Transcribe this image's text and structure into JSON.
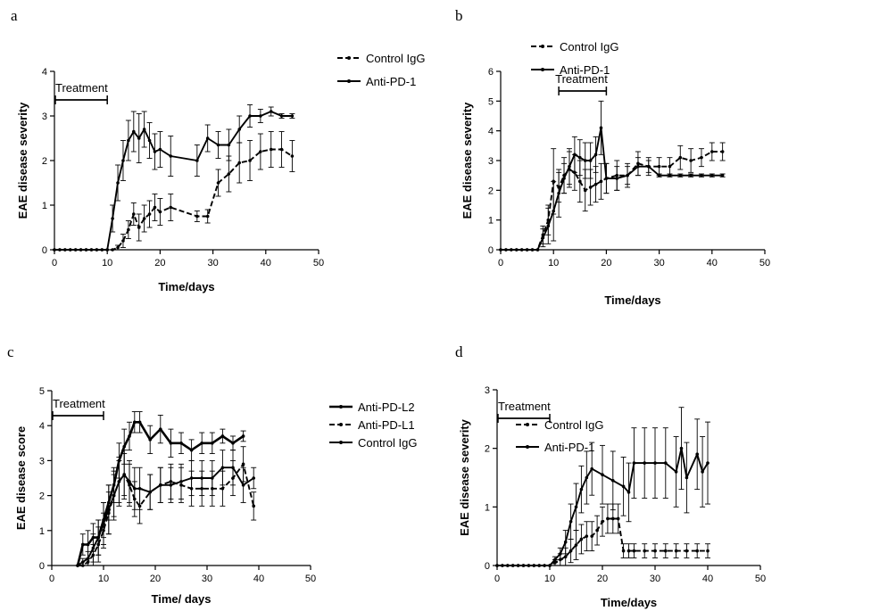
{
  "panels": [
    {
      "label": "a"
    },
    {
      "label": "b"
    },
    {
      "label": "c"
    },
    {
      "label": "d"
    }
  ],
  "chart_data": [
    {
      "type": "line",
      "xlabel": "Time/days",
      "ylabel": "EAE  disease severity",
      "xlim": [
        0,
        50
      ],
      "ylim": [
        0,
        4
      ],
      "xticks": [
        0,
        10,
        20,
        30,
        40,
        50
      ],
      "yticks": [
        0,
        1,
        2,
        3,
        4
      ],
      "treatment": {
        "label": "Treatment",
        "start": 0,
        "end": 10
      },
      "legend": [
        "Control IgG",
        "Anti-PD-1"
      ],
      "series": [
        {
          "name": "Control IgG",
          "style": "dashed",
          "x": [
            0,
            1,
            2,
            3,
            4,
            5,
            6,
            7,
            8,
            9,
            10,
            11,
            12,
            13,
            14,
            15,
            16,
            17,
            18,
            19,
            20,
            22,
            27,
            29,
            31,
            33,
            35,
            37,
            39,
            41,
            43,
            45
          ],
          "y": [
            0,
            0,
            0,
            0,
            0,
            0,
            0,
            0,
            0,
            0,
            0,
            0,
            0.05,
            0.2,
            0.45,
            0.8,
            0.5,
            0.7,
            0.8,
            0.95,
            0.85,
            0.95,
            0.75,
            0.75,
            1.5,
            1.7,
            1.95,
            2.0,
            2.2,
            2.25,
            2.25,
            2.1
          ],
          "err": [
            0,
            0,
            0,
            0,
            0,
            0,
            0,
            0,
            0,
            0,
            0,
            0,
            0.05,
            0.15,
            0.2,
            0.25,
            0.3,
            0.3,
            0.3,
            0.3,
            0.3,
            0.3,
            0.12,
            0.15,
            0.3,
            0.4,
            0.45,
            0.45,
            0.4,
            0.4,
            0.4,
            0.35
          ]
        },
        {
          "name": "Anti-PD-1",
          "style": "solid",
          "x": [
            0,
            1,
            2,
            3,
            4,
            5,
            6,
            7,
            8,
            9,
            10,
            11,
            12,
            13,
            14,
            15,
            16,
            17,
            18,
            19,
            20,
            22,
            27,
            29,
            31,
            33,
            35,
            37,
            39,
            41,
            43,
            45
          ],
          "y": [
            0,
            0,
            0,
            0,
            0,
            0,
            0,
            0,
            0,
            0,
            0,
            0.7,
            1.5,
            2.0,
            2.45,
            2.65,
            2.5,
            2.7,
            2.45,
            2.2,
            2.25,
            2.1,
            2.0,
            2.5,
            2.35,
            2.35,
            2.7,
            3.0,
            3.0,
            3.1,
            3.0,
            3.0
          ],
          "err": [
            0,
            0,
            0,
            0,
            0,
            0,
            0,
            0,
            0,
            0,
            0,
            0.3,
            0.4,
            0.45,
            0.45,
            0.45,
            0.55,
            0.4,
            0.4,
            0.4,
            0.4,
            0.45,
            0.35,
            0.3,
            0.3,
            0.35,
            0.3,
            0.25,
            0.15,
            0.1,
            0.05,
            0.05
          ]
        }
      ]
    },
    {
      "type": "line",
      "xlabel": "Time/days",
      "ylabel": "EAE disease severity",
      "xlim": [
        0,
        50
      ],
      "ylim": [
        0,
        6
      ],
      "xticks": [
        0,
        10,
        20,
        30,
        40,
        50
      ],
      "yticks": [
        0,
        1,
        2,
        3,
        4,
        5,
        6
      ],
      "treatment": {
        "label": "Treatment",
        "start": 11,
        "end": 20
      },
      "legend": [
        "Control IgG",
        "Anti-PD-1"
      ],
      "series": [
        {
          "name": "Control IgG",
          "style": "dashed",
          "x": [
            0,
            1,
            2,
            3,
            4,
            5,
            6,
            7,
            8,
            9,
            10,
            11,
            12,
            13,
            14,
            15,
            16,
            17,
            18,
            19,
            20,
            22,
            24,
            26,
            28,
            30,
            32,
            34,
            36,
            38,
            40,
            42
          ],
          "y": [
            0,
            0,
            0,
            0,
            0,
            0,
            0,
            0,
            0.5,
            1.0,
            2.3,
            2.1,
            2.5,
            2.7,
            2.6,
            2.3,
            2.0,
            2.1,
            2.2,
            2.3,
            2.4,
            2.5,
            2.5,
            2.9,
            2.8,
            2.8,
            2.8,
            3.1,
            3.0,
            3.1,
            3.3,
            3.3
          ],
          "err": [
            0,
            0,
            0,
            0,
            0,
            0,
            0,
            0,
            0.3,
            0.5,
            1.1,
            0.5,
            0.6,
            0.6,
            0.6,
            0.7,
            0.7,
            0.6,
            0.6,
            0.6,
            0.5,
            0.5,
            0.4,
            0.4,
            0.3,
            0.3,
            0.3,
            0.4,
            0.4,
            0.3,
            0.3,
            0.3
          ]
        },
        {
          "name": "Anti-PD-1",
          "style": "solid",
          "x": [
            0,
            1,
            2,
            3,
            4,
            5,
            6,
            7,
            8,
            9,
            10,
            11,
            12,
            13,
            14,
            15,
            16,
            17,
            18,
            19,
            20,
            22,
            24,
            26,
            28,
            30,
            32,
            34,
            36,
            38,
            40,
            42
          ],
          "y": [
            0,
            0,
            0,
            0,
            0,
            0,
            0,
            0,
            0.4,
            0.8,
            1.3,
            1.9,
            2.4,
            2.8,
            3.2,
            3.1,
            3.0,
            3.0,
            3.2,
            4.1,
            2.4,
            2.4,
            2.5,
            2.8,
            2.8,
            2.5,
            2.5,
            2.5,
            2.5,
            2.5,
            2.5,
            2.5
          ],
          "err": [
            0,
            0,
            0,
            0,
            0,
            0,
            0,
            0,
            0.3,
            0.6,
            1.0,
            0.8,
            0.5,
            0.6,
            0.6,
            0.6,
            0.6,
            0.6,
            0.6,
            0.9,
            0.5,
            0.4,
            0.3,
            0.3,
            0.2,
            0.05,
            0.05,
            0.05,
            0.05,
            0.05,
            0.05,
            0.05
          ]
        }
      ]
    },
    {
      "type": "line",
      "xlabel": "Time/ days",
      "ylabel": "EAE disease score",
      "xlim": [
        0,
        50
      ],
      "ylim": [
        0,
        5
      ],
      "xticks": [
        0,
        10,
        20,
        30,
        40,
        50
      ],
      "yticks": [
        0,
        1,
        2,
        3,
        4,
        5
      ],
      "treatment": {
        "label": "Treatment",
        "start": 0,
        "end": 10
      },
      "legend": [
        "Anti-PD-L2",
        "Anti-PD-L1",
        "Control IgG"
      ],
      "series": [
        {
          "name": "Anti-PD-L2",
          "style": "solid-bold",
          "x": [
            5,
            6,
            7,
            8,
            9,
            10,
            11,
            12,
            13,
            14,
            15,
            16,
            17,
            19,
            21,
            23,
            25,
            27,
            29,
            31,
            33,
            35,
            37
          ],
          "y": [
            0,
            0.6,
            0.6,
            0.8,
            0.8,
            1.3,
            1.8,
            2.3,
            3.0,
            3.4,
            3.7,
            4.1,
            4.1,
            3.6,
            3.9,
            3.5,
            3.5,
            3.3,
            3.5,
            3.5,
            3.7,
            3.5,
            3.7
          ],
          "err": [
            0,
            0.3,
            0.4,
            0.4,
            0.5,
            0.5,
            0.5,
            0.5,
            0.5,
            0.5,
            0.4,
            0.3,
            0.3,
            0.4,
            0.4,
            0.4,
            0.3,
            0.3,
            0.3,
            0.3,
            0.2,
            0.2,
            0.15
          ]
        },
        {
          "name": "Anti-PD-L1",
          "style": "dashed",
          "x": [
            5,
            6,
            7,
            8,
            9,
            10,
            11,
            12,
            13,
            14,
            15,
            16,
            17,
            19,
            21,
            23,
            25,
            27,
            29,
            31,
            33,
            35,
            37,
            39
          ],
          "y": [
            0,
            0,
            0.1,
            0.3,
            0.6,
            1.0,
            1.5,
            2.0,
            2.4,
            2.6,
            2.3,
            1.9,
            1.7,
            2.1,
            2.3,
            2.4,
            2.3,
            2.2,
            2.2,
            2.2,
            2.2,
            2.5,
            2.9,
            1.7
          ],
          "err": [
            0,
            0,
            0.1,
            0.3,
            0.5,
            0.5,
            0.6,
            0.6,
            0.6,
            0.6,
            0.6,
            0.5,
            0.5,
            0.5,
            0.5,
            0.5,
            0.5,
            0.5,
            0.5,
            0.5,
            0.5,
            0.5,
            0.5,
            0.4
          ]
        },
        {
          "name": "Control IgG",
          "style": "solid",
          "x": [
            5,
            6,
            7,
            8,
            9,
            10,
            11,
            12,
            13,
            14,
            15,
            16,
            17,
            19,
            21,
            23,
            25,
            27,
            29,
            31,
            33,
            35,
            37,
            39
          ],
          "y": [
            0,
            0.1,
            0.2,
            0.5,
            0.8,
            1.2,
            1.6,
            2.0,
            2.4,
            2.6,
            2.4,
            2.2,
            2.2,
            2.1,
            2.3,
            2.3,
            2.4,
            2.5,
            2.5,
            2.5,
            2.8,
            2.8,
            2.3,
            2.5
          ],
          "err": [
            0,
            0.1,
            0.2,
            0.4,
            0.5,
            0.6,
            0.7,
            0.7,
            0.7,
            0.7,
            0.6,
            0.6,
            0.6,
            0.5,
            0.5,
            0.5,
            0.5,
            0.5,
            0.5,
            0.5,
            0.5,
            0.5,
            0.5,
            0.3
          ]
        }
      ]
    },
    {
      "type": "line",
      "xlabel": "Time/days",
      "ylabel": "EAE disease severity",
      "xlim": [
        0,
        50
      ],
      "ylim": [
        0,
        3
      ],
      "xticks": [
        0,
        10,
        20,
        30,
        40,
        50
      ],
      "yticks": [
        0,
        1,
        2,
        3
      ],
      "treatment": {
        "label": "Treatment",
        "start": 0,
        "end": 10
      },
      "legend": [
        "Control IgG",
        "Anti-PD-1"
      ],
      "series": [
        {
          "name": "Control IgG",
          "style": "dashed",
          "x": [
            0,
            1,
            2,
            3,
            4,
            5,
            6,
            7,
            8,
            9,
            10,
            11,
            12,
            13,
            14,
            15,
            16,
            17,
            18,
            19,
            20,
            21,
            22,
            23,
            24,
            25,
            26,
            28,
            30,
            32,
            34,
            36,
            38,
            40
          ],
          "y": [
            0,
            0,
            0,
            0,
            0,
            0,
            0,
            0,
            0,
            0,
            0,
            0.05,
            0.1,
            0.15,
            0.25,
            0.35,
            0.45,
            0.5,
            0.5,
            0.6,
            0.75,
            0.8,
            0.8,
            0.8,
            0.25,
            0.25,
            0.25,
            0.25,
            0.25,
            0.25,
            0.25,
            0.25,
            0.25,
            0.25
          ],
          "err": [
            0,
            0,
            0,
            0,
            0,
            0,
            0,
            0,
            0,
            0,
            0,
            0.05,
            0.1,
            0.15,
            0.2,
            0.25,
            0.25,
            0.25,
            0.25,
            0.25,
            0.25,
            0.25,
            0.25,
            0.25,
            0.12,
            0.12,
            0.12,
            0.12,
            0.12,
            0.12,
            0.12,
            0.12,
            0.12,
            0.12
          ]
        },
        {
          "name": "Anti-PD-1",
          "style": "solid",
          "x": [
            0,
            1,
            2,
            3,
            4,
            5,
            6,
            7,
            8,
            9,
            10,
            11,
            12,
            13,
            14,
            15,
            16,
            17,
            18,
            20,
            22,
            24,
            25,
            26,
            28,
            30,
            32,
            34,
            35,
            36,
            38,
            39,
            40
          ],
          "y": [
            0,
            0,
            0,
            0,
            0,
            0,
            0,
            0,
            0,
            0,
            0,
            0.1,
            0.2,
            0.4,
            0.75,
            1.0,
            1.3,
            1.5,
            1.65,
            1.55,
            1.45,
            1.35,
            1.25,
            1.75,
            1.75,
            1.75,
            1.75,
            1.6,
            2.0,
            1.5,
            1.9,
            1.6,
            1.75
          ],
          "err": [
            0,
            0,
            0,
            0,
            0,
            0,
            0,
            0,
            0,
            0,
            0,
            0.05,
            0.1,
            0.2,
            0.3,
            0.4,
            0.4,
            0.45,
            0.45,
            0.5,
            0.5,
            0.5,
            0.5,
            0.6,
            0.6,
            0.6,
            0.6,
            0.6,
            0.7,
            0.6,
            0.6,
            0.6,
            0.7
          ]
        }
      ]
    }
  ]
}
